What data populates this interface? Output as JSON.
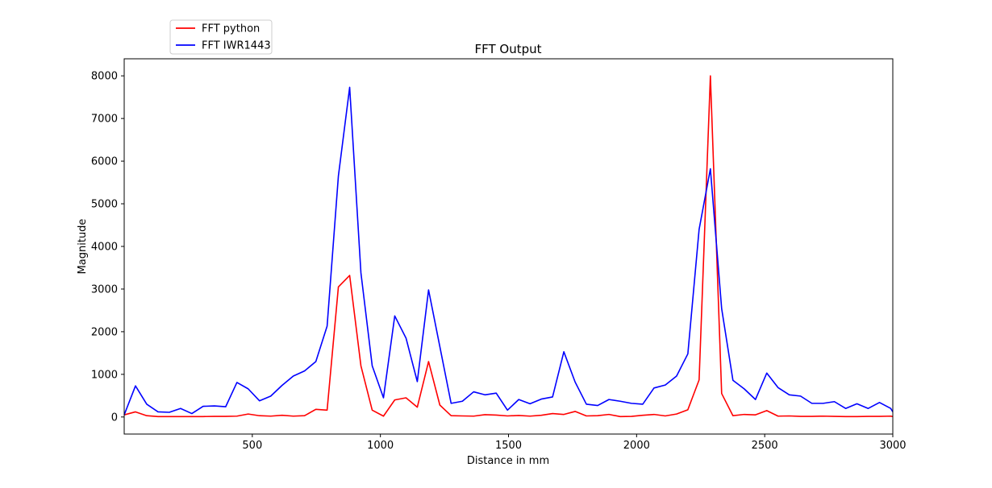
{
  "chart_data": {
    "type": "line",
    "title": "FFT Output",
    "xlabel": "Distance in mm",
    "ylabel": "Magnitude",
    "xlim": [
      0,
      3000
    ],
    "ylim": [
      -400,
      8400
    ],
    "xticks": [
      500,
      1000,
      1500,
      2000,
      2500,
      3000
    ],
    "yticks": [
      0,
      1000,
      2000,
      3000,
      4000,
      5000,
      6000,
      7000,
      8000
    ],
    "grid": false,
    "legend_position": "top-left, above plot",
    "x": [
      0,
      44,
      88,
      132,
      176,
      220,
      264,
      308,
      352,
      396,
      440,
      484,
      528,
      572,
      616,
      660,
      704,
      748,
      792,
      836,
      880,
      924,
      968,
      1012,
      1056,
      1100,
      1144,
      1188,
      1232,
      1276,
      1320,
      1364,
      1408,
      1452,
      1496,
      1540,
      1584,
      1628,
      1672,
      1716,
      1760,
      1804,
      1848,
      1892,
      1936,
      1980,
      2024,
      2068,
      2112,
      2156,
      2200,
      2244,
      2288,
      2332,
      2376,
      2420,
      2464,
      2508,
      2552,
      2596,
      2640,
      2684,
      2728,
      2772,
      2816,
      2860,
      2904,
      2948,
      2992,
      3000
    ],
    "series": [
      {
        "name": "FFT python",
        "color": "#ff0000",
        "values": [
          50,
          120,
          30,
          10,
          10,
          10,
          10,
          10,
          15,
          15,
          20,
          70,
          30,
          20,
          40,
          20,
          30,
          180,
          160,
          3050,
          3320,
          1200,
          160,
          20,
          400,
          450,
          230,
          1300,
          280,
          30,
          25,
          20,
          55,
          45,
          25,
          35,
          20,
          40,
          80,
          60,
          130,
          25,
          30,
          60,
          10,
          15,
          40,
          60,
          25,
          70,
          170,
          870,
          8000,
          550,
          30,
          60,
          50,
          150,
          20,
          25,
          15,
          15,
          20,
          15,
          10,
          10,
          15,
          15,
          20,
          10
        ]
      },
      {
        "name": "FFT IWR1443",
        "color": "#0000ff",
        "values": [
          50,
          730,
          300,
          120,
          110,
          200,
          80,
          250,
          260,
          240,
          810,
          660,
          380,
          490,
          740,
          960,
          1080,
          1300,
          2130,
          5650,
          7730,
          3380,
          1200,
          450,
          2370,
          1850,
          830,
          2980,
          1650,
          320,
          370,
          590,
          520,
          560,
          160,
          410,
          310,
          420,
          470,
          1530,
          820,
          300,
          270,
          410,
          370,
          320,
          300,
          680,
          750,
          960,
          1480,
          4400,
          5820,
          2540,
          860,
          660,
          410,
          1030,
          690,
          520,
          490,
          320,
          320,
          360,
          200,
          310,
          200,
          340,
          200,
          120
        ]
      }
    ]
  }
}
